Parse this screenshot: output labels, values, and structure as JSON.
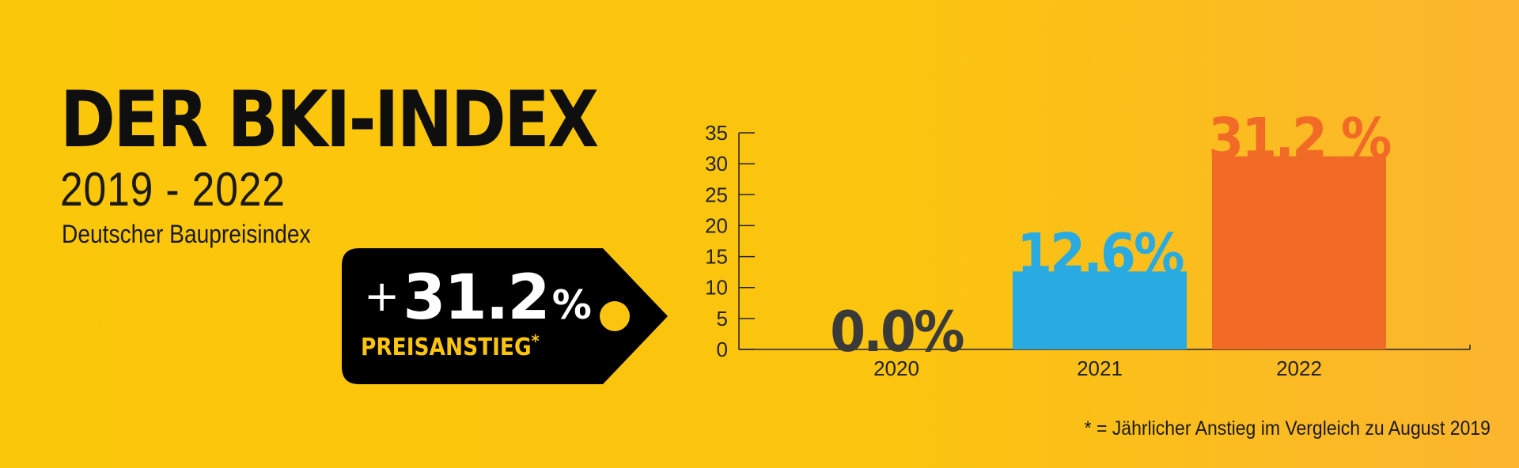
{
  "header": {
    "title": "DER BKI-INDEX",
    "years": "2019 - 2022",
    "subtitle": "Deutscher Baupreisindex"
  },
  "price_tag": {
    "plus": "+",
    "value": "31.2",
    "percent": "%",
    "label": "PREISANSTIEG",
    "asterisk": "*"
  },
  "footnote": "* = Jährlicher Anstieg im Vergleich zu August 2019",
  "colors": {
    "background": "#FBC40F",
    "tag": "#000000",
    "bar_2020": "#3A3A3A",
    "bar_2021": "#29ABE2",
    "bar_2022": "#F26B26"
  },
  "chart_data": {
    "type": "bar",
    "categories": [
      "2020",
      "2021",
      "2022"
    ],
    "values": [
      0.0,
      12.6,
      31.2
    ],
    "data_labels": [
      "0.0%",
      "12.6%",
      "31.2 %"
    ],
    "colors": [
      "#3A3A3A",
      "#29ABE2",
      "#F26B26"
    ],
    "ylim": [
      0,
      35
    ],
    "yticks": [
      0,
      5,
      10,
      15,
      20,
      25,
      30,
      35
    ],
    "grid": false,
    "legend": "none"
  }
}
